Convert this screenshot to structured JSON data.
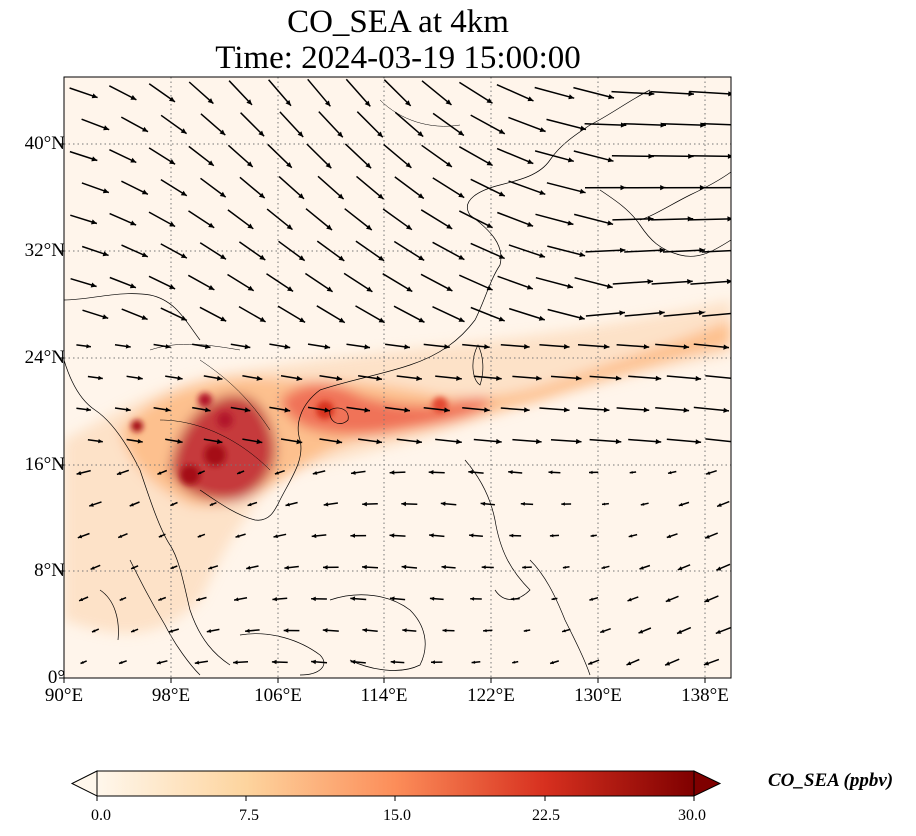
{
  "title": {
    "line1": "CO_SEA at 4km",
    "line2": "Time: 2024-03-19 15:00:00"
  },
  "map": {
    "lon_range": [
      90,
      140
    ],
    "lat_range": [
      0,
      45
    ],
    "lon_ticks": [
      {
        "value": 90,
        "label": "90°E"
      },
      {
        "value": 98,
        "label": "98°E"
      },
      {
        "value": 106,
        "label": "106°E"
      },
      {
        "value": 114,
        "label": "114°E"
      },
      {
        "value": 122,
        "label": "122°E"
      },
      {
        "value": 130,
        "label": "130°E"
      },
      {
        "value": 138,
        "label": "138°E"
      }
    ],
    "lat_ticks": [
      {
        "value": 0,
        "label": "0°"
      },
      {
        "value": 8,
        "label": "8°N"
      },
      {
        "value": 16,
        "label": "16°N"
      },
      {
        "value": 24,
        "label": "24°N"
      },
      {
        "value": 32,
        "label": "32°N"
      },
      {
        "value": 40,
        "label": "40°N"
      }
    ],
    "grid": "dotted",
    "background_color": "#fff5eb",
    "plume_color_high": "#a50f15",
    "plume_color_mid": "#ef6548",
    "plume_color_low": "#fdd0a2"
  },
  "colorbar": {
    "label": "CO_SEA (ppbv)",
    "min": 0.0,
    "max": 30.0,
    "extend": "both",
    "colormap": "OrRd",
    "ticks": [
      "0.0",
      "7.5",
      "15.0",
      "22.5",
      "30.0"
    ]
  }
}
